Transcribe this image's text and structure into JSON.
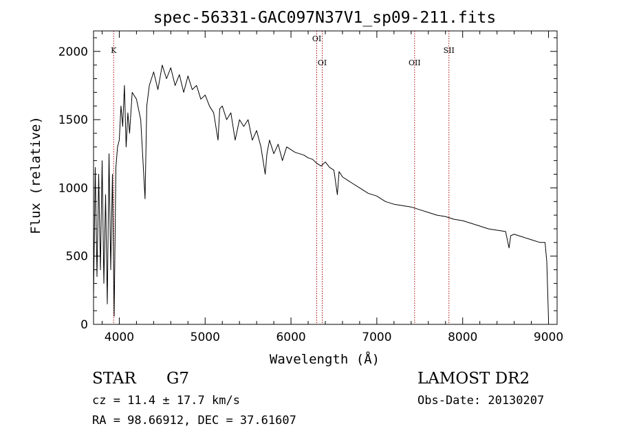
{
  "chart_data": {
    "type": "line",
    "title": "spec-56331-GAC097N37V1_sp09-211.fits",
    "xlabel": "Wavelength (Å)",
    "ylabel": "Flux (relative)",
    "xlim": [
      3700,
      9100
    ],
    "ylim": [
      0,
      2150
    ],
    "xticks": [
      4000,
      5000,
      6000,
      7000,
      8000,
      9000
    ],
    "yticks": [
      0,
      500,
      1000,
      1500,
      2000
    ],
    "series": [
      {
        "name": "flux",
        "x": [
          3700,
          3720,
          3740,
          3760,
          3780,
          3800,
          3820,
          3840,
          3860,
          3880,
          3900,
          3920,
          3940,
          3960,
          3980,
          4000,
          4020,
          4040,
          4060,
          4080,
          4100,
          4120,
          4150,
          4200,
          4250,
          4300,
          4320,
          4350,
          4400,
          4450,
          4500,
          4550,
          4600,
          4650,
          4700,
          4750,
          4800,
          4850,
          4900,
          4950,
          5000,
          5050,
          5100,
          5150,
          5170,
          5200,
          5250,
          5300,
          5350,
          5400,
          5450,
          5500,
          5550,
          5600,
          5650,
          5700,
          5720,
          5750,
          5800,
          5850,
          5900,
          5950,
          6000,
          6050,
          6100,
          6150,
          6200,
          6250,
          6300,
          6350,
          6400,
          6450,
          6500,
          6540,
          6560,
          6580,
          6600,
          6700,
          6800,
          6900,
          7000,
          7100,
          7200,
          7300,
          7400,
          7500,
          7600,
          7700,
          7800,
          7900,
          8000,
          8100,
          8200,
          8300,
          8400,
          8500,
          8540,
          8560,
          8600,
          8700,
          8800,
          8900,
          8960,
          8980,
          9000
        ],
        "y": [
          200,
          1150,
          350,
          1100,
          400,
          1200,
          300,
          950,
          150,
          1250,
          400,
          1100,
          60,
          1150,
          1300,
          1350,
          1600,
          1450,
          1750,
          1300,
          1550,
          1400,
          1700,
          1650,
          1500,
          920,
          1600,
          1750,
          1850,
          1720,
          1900,
          1800,
          1880,
          1750,
          1830,
          1700,
          1820,
          1720,
          1750,
          1650,
          1680,
          1600,
          1550,
          1350,
          1580,
          1600,
          1500,
          1550,
          1350,
          1500,
          1450,
          1500,
          1350,
          1420,
          1300,
          1100,
          1250,
          1350,
          1250,
          1320,
          1200,
          1300,
          1280,
          1260,
          1250,
          1240,
          1220,
          1210,
          1180,
          1160,
          1190,
          1150,
          1130,
          950,
          1120,
          1100,
          1080,
          1040,
          1000,
          960,
          940,
          900,
          880,
          870,
          860,
          840,
          820,
          800,
          790,
          770,
          760,
          740,
          720,
          700,
          690,
          680,
          560,
          650,
          660,
          640,
          620,
          600,
          600,
          460,
          40
        ]
      }
    ],
    "markers": [
      {
        "label": "K",
        "wavelength": 3934
      },
      {
        "label": "OI",
        "wavelength": 6300
      },
      {
        "label": "OI",
        "wavelength": 6364
      },
      {
        "label": "OII",
        "wavelength": 7440
      },
      {
        "label": "SII",
        "wavelength": 7840
      }
    ]
  },
  "info": {
    "object_class": "STAR",
    "subclass": "G7",
    "survey": "LAMOST DR2",
    "redshift": "cz = 11.4 ± 17.7 km/s",
    "obs_date": "Obs-Date: 20130207",
    "coords": "RA =  98.66912, DEC =  37.61607"
  },
  "colors": {
    "line": "#000000",
    "marker": "#aa0000",
    "axis": "#000000"
  }
}
